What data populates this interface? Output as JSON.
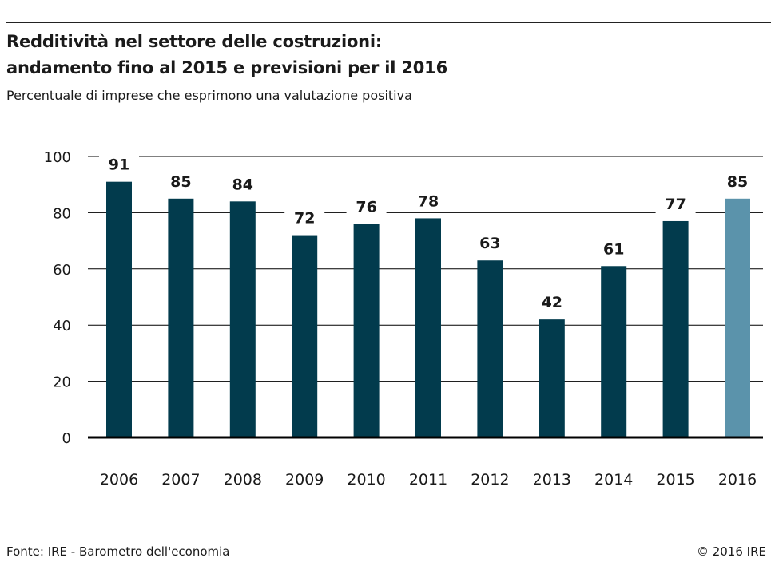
{
  "header": {
    "title_line1": "Redditività nel settore delle costruzioni:",
    "title_line2": "andamento fino al 2015 e previsioni per il 2016",
    "subtitle": "Percentuale di imprese che esprimono una valutazione positiva"
  },
  "footer": {
    "source": "Fonte: IRE - Barometro dell'economia",
    "copyright": "© 2016 IRE"
  },
  "colors": {
    "bar_actual": "#023b4d",
    "bar_forecast": "#5b93ab",
    "axis": "#000000",
    "grid": "#000000"
  },
  "chart_data": {
    "type": "bar",
    "title": "Redditività nel settore delle costruzioni: andamento fino al 2015 e previsioni per il 2016",
    "subtitle": "Percentuale di imprese che esprimono una valutazione positiva",
    "categories": [
      "2006",
      "2007",
      "2008",
      "2009",
      "2010",
      "2011",
      "2012",
      "2013",
      "2014",
      "2015",
      "2016"
    ],
    "values": [
      91,
      85,
      84,
      72,
      76,
      78,
      63,
      42,
      61,
      77,
      85
    ],
    "forecast": [
      false,
      false,
      false,
      false,
      false,
      false,
      false,
      false,
      false,
      false,
      true
    ],
    "data_labels": [
      "91",
      "85",
      "84",
      "72",
      "76",
      "78",
      "63",
      "42",
      "61",
      "77",
      "85"
    ],
    "yticks": [
      0,
      20,
      40,
      60,
      80,
      100
    ],
    "ylim": [
      0,
      100
    ],
    "grid": true,
    "xlabel": "",
    "ylabel": ""
  }
}
